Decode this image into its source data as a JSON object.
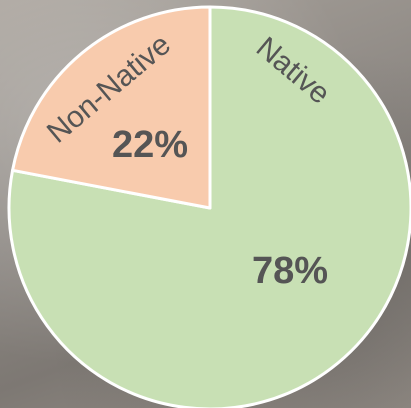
{
  "chart_data": {
    "type": "pie",
    "categories": [
      "Native",
      "Non-Native"
    ],
    "values": [
      78,
      22
    ],
    "value_labels": [
      "78%",
      "22%"
    ],
    "colors": [
      "#c8e0b4",
      "#f8cbad"
    ]
  }
}
